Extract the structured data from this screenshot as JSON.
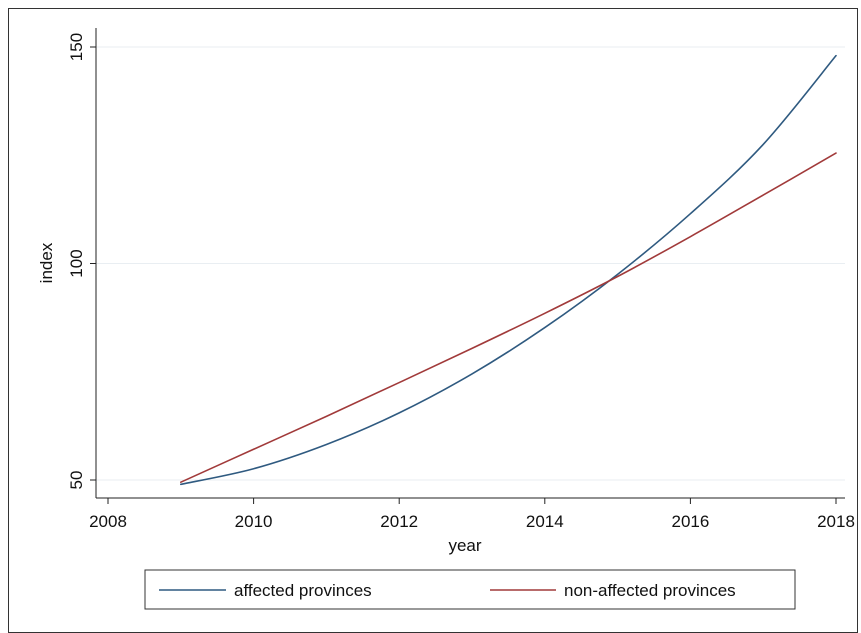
{
  "chart_data": {
    "type": "line",
    "title": "",
    "xlabel": "year",
    "ylabel": "index",
    "xlim": [
      2008,
      2018
    ],
    "ylim": [
      50,
      150
    ],
    "xticks": [
      2008,
      2010,
      2012,
      2014,
      2016,
      2018
    ],
    "yticks": [
      50,
      100,
      150
    ],
    "grid": true,
    "legend_position": "bottom",
    "series": [
      {
        "name": "affected provinces",
        "color": "#2f5a80",
        "x": [
          2009,
          2010,
          2011,
          2012,
          2013,
          2014,
          2015,
          2016,
          2017,
          2018
        ],
        "y": [
          49,
          52.6,
          58.2,
          65.5,
          74.5,
          85.2,
          97.5,
          111.5,
          127.5,
          148
        ]
      },
      {
        "name": "non-affected provinces",
        "color": "#a13a3a",
        "x": [
          2009,
          2010,
          2011,
          2012,
          2013,
          2014,
          2015,
          2016,
          2017,
          2018
        ],
        "y": [
          49.5,
          57.1,
          64.7,
          72.5,
          80.4,
          88.5,
          97.0,
          106.2,
          115.8,
          125.5
        ]
      }
    ]
  }
}
